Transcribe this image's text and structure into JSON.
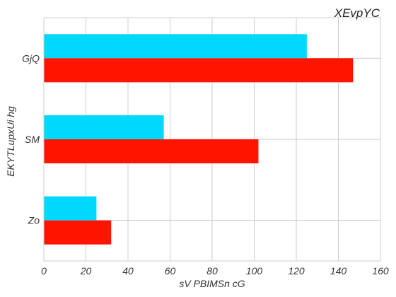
{
  "chart_data": {
    "type": "bar",
    "orientation": "horizontal",
    "title": "XEvpYC",
    "xlabel": "sV PBIMSn cG",
    "ylabel": "EKYTLupxUi hg",
    "categories": [
      "Zo",
      "SM",
      "GjQ"
    ],
    "series": [
      {
        "values": [
          25,
          57,
          125
        ],
        "color": "#00d8ff"
      },
      {
        "values": [
          32,
          102,
          147
        ],
        "color": "#ff1400"
      }
    ],
    "xlim": [
      0,
      160
    ],
    "xticks": [
      "0",
      "20",
      "40",
      "60",
      "80",
      "100",
      "120",
      "140",
      "160"
    ],
    "grid": true,
    "legend": "none"
  }
}
